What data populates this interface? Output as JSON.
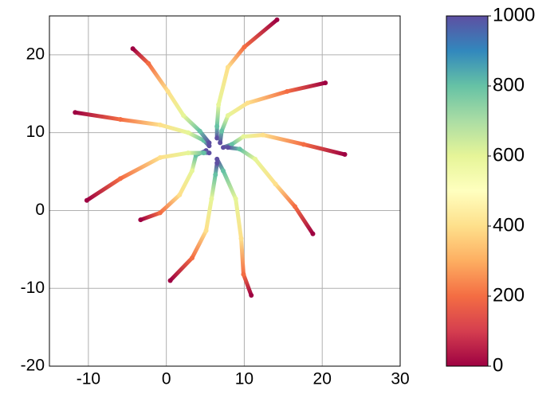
{
  "chart_data": {
    "type": "scatter",
    "xlim": [
      -15,
      30
    ],
    "xticks": [
      -10,
      0,
      10,
      20,
      30
    ],
    "ylim": [
      -20,
      25
    ],
    "yticks": [
      -20,
      -10,
      0,
      10,
      20
    ],
    "grid": true,
    "colormap": "Spectral",
    "clim": [
      0,
      1000
    ],
    "cticks": [
      0,
      200,
      400,
      600,
      800,
      1000
    ],
    "series": [
      {
        "x": [
          14.2,
          10,
          7.9,
          6.7,
          6.5,
          6.5
        ],
        "values": [
          24.5,
          21,
          18.4,
          13.6,
          10.8,
          9.3
        ],
        "c": [
          0,
          200,
          400,
          600,
          800,
          1000
        ]
      },
      {
        "x": [
          20.4,
          15.5,
          10.4,
          7.9,
          7.1,
          6.9
        ],
        "values": [
          16.4,
          15.3,
          13.8,
          12.2,
          10.2,
          8.7
        ],
        "c": [
          0,
          200,
          400,
          600,
          800,
          1000
        ]
      },
      {
        "x": [
          22.9,
          17.6,
          12.4,
          9.9,
          8.4,
          7.3
        ],
        "values": [
          7.2,
          8.5,
          9.7,
          9.5,
          8.5,
          8.1
        ],
        "c": [
          0,
          200,
          400,
          600,
          800,
          1000
        ]
      },
      {
        "x": [
          18.8,
          16.5,
          14,
          11.4,
          9.4,
          7.9
        ],
        "values": [
          -3.0,
          0.5,
          3.4,
          6.6,
          7.9,
          8.1
        ],
        "c": [
          0,
          200,
          400,
          600,
          800,
          1000
        ]
      },
      {
        "x": [
          10.9,
          9.9,
          9.6,
          8.9,
          7.3,
          6.5
        ],
        "values": [
          -10.9,
          -8.2,
          -3.6,
          1.5,
          5.1,
          6.6
        ],
        "c": [
          0,
          200,
          400,
          600,
          800,
          1000
        ]
      },
      {
        "x": [
          0.5,
          3.3,
          5.1,
          5.8,
          6.3,
          6.5
        ],
        "values": [
          -9.0,
          -6.1,
          -2.6,
          1.5,
          4.6,
          6.1
        ],
        "c": [
          0,
          200,
          400,
          600,
          800,
          1000
        ]
      },
      {
        "x": [
          -3.3,
          -0.8,
          1.7,
          3.3,
          3.8,
          5.1
        ],
        "values": [
          -1.2,
          -0.3,
          2.0,
          5.1,
          7.1,
          7.7
        ],
        "c": [
          0,
          200,
          400,
          600,
          800,
          1000
        ]
      },
      {
        "x": [
          -10.2,
          -5.9,
          -0.8,
          2.8,
          4.8,
          5.5
        ],
        "values": [
          1.3,
          4.1,
          6.8,
          7.4,
          7.4,
          7.4
        ],
        "c": [
          0,
          200,
          400,
          600,
          800,
          1000
        ]
      },
      {
        "x": [
          -11.7,
          -5.9,
          -0.8,
          2.8,
          4.8,
          5.5
        ],
        "values": [
          12.6,
          11.7,
          11.0,
          10.0,
          9.0,
          8.3
        ],
        "c": [
          0,
          200,
          400,
          600,
          800,
          1000
        ]
      },
      {
        "x": [
          -4.3,
          -2.3,
          0.2,
          2.2,
          4.3,
          5.5
        ],
        "values": [
          20.8,
          18.9,
          15.3,
          12.2,
          10.2,
          8.7
        ],
        "c": [
          0,
          200,
          400,
          600,
          800,
          1000
        ]
      }
    ]
  }
}
